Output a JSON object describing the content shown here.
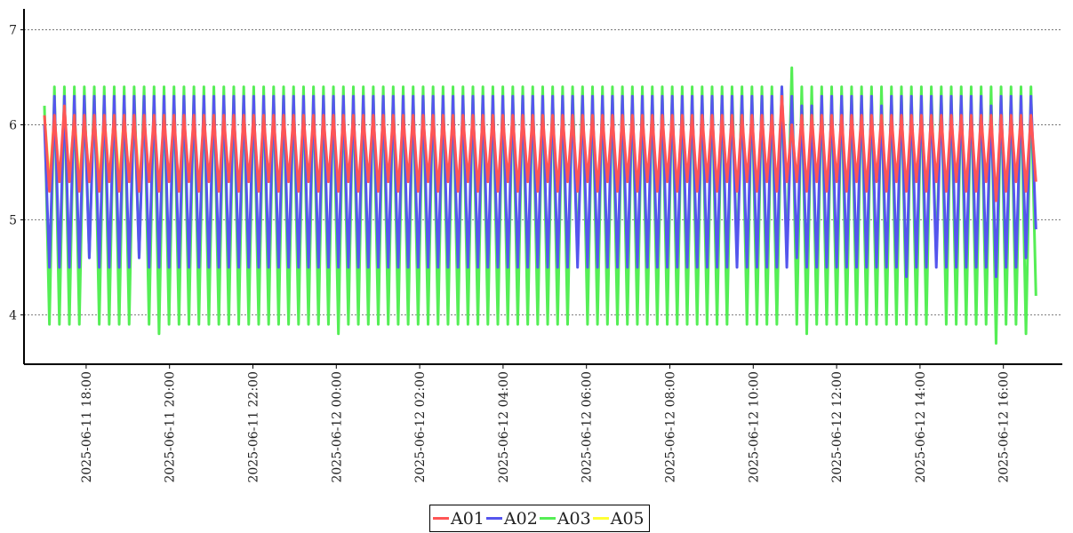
{
  "chart_data": {
    "type": "line",
    "title": "",
    "xlabel": "",
    "ylabel": "",
    "ylim": [
      3.48,
      7.22
    ],
    "yticks": [
      "4",
      "5",
      "6",
      "7"
    ],
    "ytick_values": [
      4,
      5,
      6,
      7
    ],
    "grid": "horizontal dotted",
    "x_start": "2025-06-11 17:00",
    "x_step_minutes": 7.17,
    "xticks": [
      "2025-06-11 18:00",
      "2025-06-11 20:00",
      "2025-06-11 22:00",
      "2025-06-12 00:00",
      "2025-06-12 02:00",
      "2025-06-12 04:00",
      "2025-06-12 06:00",
      "2025-06-12 08:00",
      "2025-06-12 10:00",
      "2025-06-12 12:00",
      "2025-06-12 14:00",
      "2025-06-12 16:00"
    ],
    "xtick_minutes": [
      60,
      180,
      300,
      420,
      540,
      660,
      780,
      900,
      1020,
      1140,
      1260,
      1380
    ],
    "legend_position": "bottom-center",
    "series": [
      {
        "name": "A01",
        "color": "#ff5555",
        "high": [
          6.1,
          6.1,
          6.2,
          6.1,
          6.1,
          6.1,
          6.1,
          6.1,
          6.1,
          6.1,
          6.1,
          6.1,
          6.1,
          6.1,
          6.1,
          6.1,
          6.1,
          6.1,
          6.1,
          6.1,
          6.1,
          6.1,
          6.1,
          6.1,
          6.1,
          6.1,
          6.1,
          6.1,
          6.1,
          6.1,
          6.1,
          6.1,
          6.1,
          6.1,
          6.1,
          6.1,
          6.1,
          6.1,
          6.1,
          6.1,
          6.1,
          6.1,
          6.1,
          6.1,
          6.1,
          6.1,
          6.1,
          6.1,
          6.1,
          6.1,
          6.1,
          6.1,
          6.1,
          6.1,
          6.1,
          6.1,
          6.1,
          6.1,
          6.1,
          6.1,
          6.1,
          6.1,
          6.1,
          6.1,
          6.1,
          6.1,
          6.1,
          6.1,
          6.1,
          6.1,
          6.1,
          6.1,
          6.1,
          6.1,
          6.3,
          6.0,
          6.1,
          6.1,
          6.1,
          6.1,
          6.1,
          6.1,
          6.1,
          6.1,
          6.1,
          6.1,
          6.1,
          6.1,
          6.1,
          6.1,
          6.1,
          6.1,
          6.1,
          6.1,
          6.1,
          6.1,
          6.1,
          6.1,
          6.1,
          6.1
        ],
        "low": [
          5.3,
          5.4,
          5.4,
          5.3,
          5.4,
          5.3,
          5.4,
          5.3,
          5.4,
          5.3,
          5.4,
          5.3,
          5.4,
          5.3,
          5.4,
          5.3,
          5.4,
          5.3,
          5.4,
          5.3,
          5.4,
          5.3,
          5.4,
          5.3,
          5.4,
          5.3,
          5.4,
          5.3,
          5.4,
          5.3,
          5.4,
          5.3,
          5.4,
          5.3,
          5.4,
          5.3,
          5.4,
          5.3,
          5.4,
          5.3,
          5.4,
          5.3,
          5.4,
          5.3,
          5.4,
          5.3,
          5.4,
          5.3,
          5.4,
          5.3,
          5.4,
          5.3,
          5.4,
          5.3,
          5.4,
          5.3,
          5.4,
          5.3,
          5.4,
          5.3,
          5.4,
          5.3,
          5.4,
          5.3,
          5.4,
          5.3,
          5.4,
          5.3,
          5.4,
          5.3,
          5.4,
          5.3,
          5.4,
          5.3,
          5.4,
          5.4,
          5.3,
          5.4,
          5.3,
          5.4,
          5.3,
          5.4,
          5.3,
          5.4,
          5.3,
          5.4,
          5.3,
          5.4,
          5.3,
          5.4,
          5.3,
          5.4,
          5.3,
          5.3,
          5.4,
          5.2,
          5.3,
          5.4,
          5.3,
          5.4
        ]
      },
      {
        "name": "A02",
        "color": "#5555ee",
        "high": [
          6.0,
          6.3,
          6.3,
          6.3,
          6.3,
          6.3,
          6.3,
          6.3,
          6.3,
          6.3,
          6.3,
          6.3,
          6.3,
          6.3,
          6.3,
          6.3,
          6.3,
          6.3,
          6.3,
          6.3,
          6.3,
          6.3,
          6.3,
          6.3,
          6.3,
          6.3,
          6.3,
          6.3,
          6.3,
          6.3,
          6.3,
          6.3,
          6.3,
          6.3,
          6.3,
          6.3,
          6.3,
          6.3,
          6.3,
          6.3,
          6.3,
          6.3,
          6.3,
          6.3,
          6.3,
          6.3,
          6.3,
          6.3,
          6.3,
          6.3,
          6.3,
          6.3,
          6.3,
          6.3,
          6.3,
          6.3,
          6.3,
          6.3,
          6.3,
          6.3,
          6.3,
          6.3,
          6.3,
          6.3,
          6.3,
          6.3,
          6.3,
          6.3,
          6.3,
          6.3,
          6.3,
          6.3,
          6.3,
          6.3,
          6.4,
          6.3,
          6.2,
          6.2,
          6.3,
          6.3,
          6.3,
          6.3,
          6.3,
          6.3,
          6.2,
          6.3,
          6.3,
          6.3,
          6.3,
          6.3,
          6.3,
          6.3,
          6.3,
          6.3,
          6.3,
          6.2,
          6.3,
          6.3,
          6.3,
          6.3
        ],
        "low": [
          4.5,
          4.5,
          4.5,
          4.5,
          4.6,
          4.5,
          4.5,
          4.5,
          4.5,
          4.6,
          4.5,
          4.5,
          4.5,
          4.5,
          4.5,
          4.5,
          4.5,
          4.5,
          4.5,
          4.5,
          4.5,
          4.5,
          4.5,
          4.5,
          4.5,
          4.5,
          4.5,
          4.5,
          4.5,
          4.5,
          4.5,
          4.5,
          4.5,
          4.5,
          4.5,
          4.5,
          4.5,
          4.5,
          4.5,
          4.5,
          4.5,
          4.5,
          4.5,
          4.5,
          4.5,
          4.5,
          4.5,
          4.5,
          4.5,
          4.5,
          4.5,
          4.5,
          4.5,
          4.5,
          4.5,
          4.5,
          4.5,
          4.5,
          4.5,
          4.5,
          4.5,
          4.5,
          4.5,
          4.5,
          4.5,
          4.5,
          4.5,
          4.5,
          4.5,
          4.5,
          4.5,
          4.5,
          4.5,
          4.5,
          4.5,
          4.6,
          4.5,
          4.5,
          4.5,
          4.5,
          4.5,
          4.5,
          4.5,
          4.5,
          4.5,
          4.5,
          4.4,
          4.5,
          4.5,
          4.5,
          4.5,
          4.5,
          4.5,
          4.5,
          4.5,
          4.4,
          4.5,
          4.5,
          4.6,
          4.9
        ]
      },
      {
        "name": "A03",
        "color": "#55ee55",
        "high": [
          6.2,
          6.4,
          6.4,
          6.4,
          6.4,
          6.4,
          6.4,
          6.4,
          6.4,
          6.4,
          6.4,
          6.4,
          6.4,
          6.4,
          6.4,
          6.4,
          6.4,
          6.4,
          6.4,
          6.4,
          6.4,
          6.4,
          6.4,
          6.4,
          6.4,
          6.4,
          6.4,
          6.4,
          6.4,
          6.4,
          6.4,
          6.4,
          6.4,
          6.4,
          6.4,
          6.4,
          6.4,
          6.4,
          6.4,
          6.4,
          6.4,
          6.4,
          6.4,
          6.4,
          6.4,
          6.4,
          6.4,
          6.4,
          6.4,
          6.4,
          6.4,
          6.4,
          6.4,
          6.4,
          6.4,
          6.4,
          6.4,
          6.4,
          6.4,
          6.4,
          6.4,
          6.4,
          6.4,
          6.4,
          6.4,
          6.4,
          6.4,
          6.4,
          6.4,
          6.4,
          6.4,
          6.4,
          6.4,
          6.4,
          6.4,
          6.6,
          6.4,
          6.4,
          6.4,
          6.4,
          6.4,
          6.4,
          6.4,
          6.4,
          6.4,
          6.4,
          6.4,
          6.4,
          6.4,
          6.4,
          6.4,
          6.4,
          6.4,
          6.4,
          6.4,
          6.4,
          6.4,
          6.4,
          6.4,
          6.4
        ],
        "low": [
          3.9,
          3.9,
          3.9,
          3.9,
          4.6,
          3.9,
          3.9,
          3.9,
          3.9,
          4.6,
          3.9,
          3.8,
          3.9,
          3.9,
          3.9,
          3.9,
          3.9,
          3.9,
          3.9,
          3.9,
          3.9,
          3.9,
          3.9,
          3.9,
          3.9,
          3.9,
          3.9,
          3.9,
          3.9,
          3.8,
          3.9,
          3.9,
          3.9,
          3.9,
          3.9,
          3.9,
          3.9,
          3.9,
          3.9,
          3.9,
          3.9,
          3.9,
          3.9,
          3.9,
          3.9,
          3.9,
          3.9,
          3.9,
          3.9,
          3.9,
          3.9,
          3.9,
          3.9,
          4.6,
          3.9,
          3.9,
          3.9,
          3.9,
          3.9,
          3.9,
          3.9,
          3.9,
          3.9,
          3.9,
          3.9,
          3.9,
          3.9,
          3.9,
          3.9,
          4.6,
          3.9,
          3.9,
          3.9,
          3.9,
          4.6,
          3.9,
          3.8,
          3.9,
          3.9,
          3.9,
          3.9,
          3.9,
          3.9,
          3.9,
          3.9,
          3.9,
          3.9,
          3.9,
          3.9,
          4.6,
          3.9,
          3.9,
          3.9,
          3.9,
          3.9,
          3.7,
          3.9,
          3.9,
          3.8,
          4.2
        ]
      },
      {
        "name": "A05",
        "color": "#ffff33",
        "high": [
          6.1,
          6.1,
          6.1,
          6.1,
          6.1,
          6.1,
          6.1,
          6.1,
          6.1,
          6.1
        ],
        "low": [
          5.4,
          5.4,
          5.4,
          5.4,
          5.4,
          5.4,
          5.4,
          5.4,
          5.4,
          5.4
        ]
      }
    ]
  }
}
